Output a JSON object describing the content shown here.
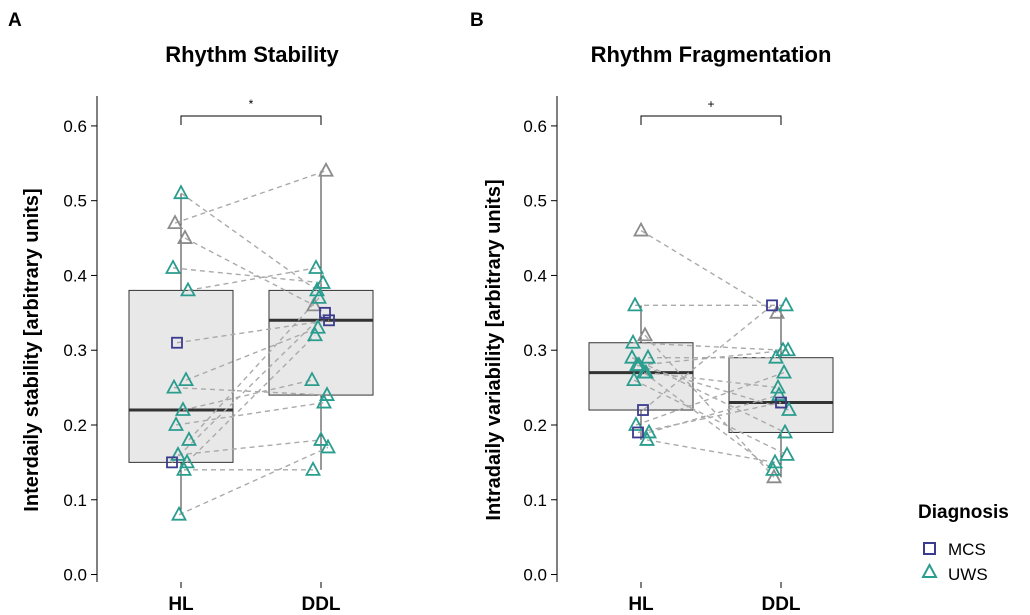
{
  "legend": {
    "title": "Diagnosis",
    "items": [
      {
        "label": "MCS",
        "shape": "square",
        "color": "#3B3B8F"
      },
      {
        "label": "UWS",
        "shape": "triangle",
        "color": "#2A9D8F"
      }
    ]
  },
  "colors": {
    "MCS": "#3B3B8F",
    "UWS": "#2A9D8F",
    "excluded": "#8C8C8C",
    "box_fill": "#E8E8E8",
    "line": "#AAAAAA"
  },
  "chart_data": [
    {
      "panel": "A",
      "type": "box",
      "title": "Rhythm Stability",
      "ylabel": "Interdaily stability [arbitrary units]",
      "categories": [
        "HL",
        "DDL"
      ],
      "ylim": [
        -0.01,
        0.64
      ],
      "yticks": [
        "0.0",
        "0.1",
        "0.2",
        "0.3",
        "0.4",
        "0.5",
        "0.6"
      ],
      "significance": "*",
      "boxes": [
        {
          "q1": 0.15,
          "median": 0.22,
          "q3": 0.38,
          "whisker_low": 0.08,
          "whisker_high": 0.51
        },
        {
          "q1": 0.24,
          "median": 0.34,
          "q3": 0.38,
          "whisker_low": 0.14,
          "whisker_high": 0.54
        }
      ],
      "pairs": [
        {
          "group": "UWS",
          "hl": 0.51,
          "ddl": 0.38
        },
        {
          "group": "excluded",
          "hl": 0.47,
          "ddl": 0.54
        },
        {
          "group": "excluded",
          "hl": 0.45,
          "ddl": 0.36
        },
        {
          "group": "UWS",
          "hl": 0.41,
          "ddl": 0.39
        },
        {
          "group": "UWS",
          "hl": 0.38,
          "ddl": 0.41
        },
        {
          "group": "MCS",
          "hl": 0.31,
          "ddl": 0.34
        },
        {
          "group": "UWS",
          "hl": 0.26,
          "ddl": 0.33
        },
        {
          "group": "UWS",
          "hl": 0.25,
          "ddl": 0.24
        },
        {
          "group": "UWS",
          "hl": 0.22,
          "ddl": 0.26
        },
        {
          "group": "UWS",
          "hl": 0.2,
          "ddl": 0.23
        },
        {
          "group": "UWS",
          "hl": 0.18,
          "ddl": 0.37
        },
        {
          "group": "UWS",
          "hl": 0.16,
          "ddl": 0.18
        },
        {
          "group": "UWS",
          "hl": 0.15,
          "ddl": 0.32
        },
        {
          "group": "MCS",
          "hl": 0.15,
          "ddl": 0.35
        },
        {
          "group": "UWS",
          "hl": 0.14,
          "ddl": 0.14
        },
        {
          "group": "UWS",
          "hl": 0.08,
          "ddl": 0.17
        }
      ]
    },
    {
      "panel": "B",
      "type": "box",
      "title": "Rhythm Fragmentation",
      "ylabel": "Intradaily variability [arbitrary units]",
      "categories": [
        "HL",
        "DDL"
      ],
      "ylim": [
        -0.01,
        0.64
      ],
      "yticks": [
        "0.0",
        "0.1",
        "0.2",
        "0.3",
        "0.4",
        "0.5",
        "0.6"
      ],
      "significance": "+",
      "boxes": [
        {
          "q1": 0.22,
          "median": 0.27,
          "q3": 0.31,
          "whisker_low": 0.18,
          "whisker_high": 0.36
        },
        {
          "q1": 0.19,
          "median": 0.23,
          "q3": 0.29,
          "whisker_low": 0.13,
          "whisker_high": 0.36
        }
      ],
      "pairs": [
        {
          "group": "excluded",
          "hl": 0.46,
          "ddl": 0.35
        },
        {
          "group": "UWS",
          "hl": 0.36,
          "ddl": 0.36
        },
        {
          "group": "excluded",
          "hl": 0.32,
          "ddl": 0.13
        },
        {
          "group": "UWS",
          "hl": 0.31,
          "ddl": 0.3
        },
        {
          "group": "UWS",
          "hl": 0.29,
          "ddl": 0.29
        },
        {
          "group": "UWS",
          "hl": 0.28,
          "ddl": 0.22
        },
        {
          "group": "UWS",
          "hl": 0.27,
          "ddl": 0.25
        },
        {
          "group": "UWS",
          "hl": 0.26,
          "ddl": 0.16
        },
        {
          "group": "MCS",
          "hl": 0.22,
          "ddl": 0.36
        },
        {
          "group": "UWS",
          "hl": 0.2,
          "ddl": 0.27
        },
        {
          "group": "UWS",
          "hl": 0.19,
          "ddl": 0.24
        },
        {
          "group": "MCS",
          "hl": 0.19,
          "ddl": 0.23
        },
        {
          "group": "UWS",
          "hl": 0.18,
          "ddl": 0.15
        },
        {
          "group": "UWS",
          "hl": 0.29,
          "ddl": 0.19
        },
        {
          "group": "UWS",
          "hl": 0.27,
          "ddl": 0.14
        },
        {
          "group": "UWS",
          "hl": 0.28,
          "ddl": 0.3
        }
      ]
    }
  ]
}
